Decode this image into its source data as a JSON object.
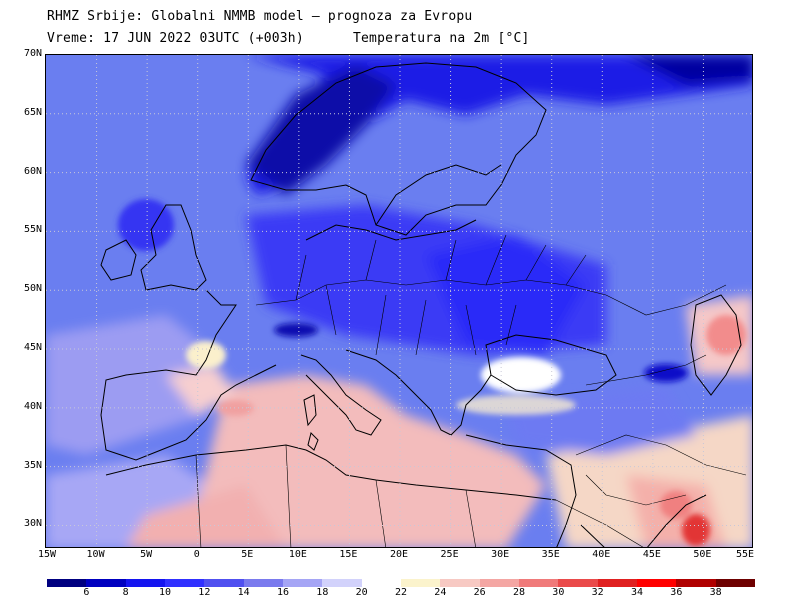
{
  "header": {
    "line1": "RHMZ Srbije: Globalni NMMB model — prognoza za Evropu",
    "line2_left": "Vreme: 17 JUN 2022 03UTC (+003h)",
    "line2_right": "Temperatura na 2m [°C]"
  },
  "map": {
    "lat_labels": [
      "70N",
      "65N",
      "60N",
      "55N",
      "50N",
      "45N",
      "40N",
      "35N",
      "30N"
    ],
    "lon_labels": [
      "15W",
      "10W",
      "5W",
      "0",
      "5E",
      "10E",
      "15E",
      "20E",
      "25E",
      "30E",
      "35E",
      "40E",
      "45E",
      "50E",
      "55E"
    ],
    "lon_range": [
      -15,
      55
    ],
    "lat_range": [
      28,
      70
    ],
    "background_color": "#6a7ef0",
    "grid": "dotted"
  },
  "legend": {
    "labels": [
      "6",
      "8",
      "10",
      "12",
      "14",
      "16",
      "18",
      "20",
      "22",
      "24",
      "26",
      "28",
      "30",
      "32",
      "34",
      "36",
      "38"
    ],
    "colors": [
      "#000080",
      "#0000c0",
      "#1414f0",
      "#3030ff",
      "#5050f0",
      "#7a7aee",
      "#a5a5f5",
      "#d2d2fb",
      "#ffffff",
      "#fbf3cc",
      "#f7c9c3",
      "#f4a6a3",
      "#f07a7a",
      "#ea4a4a",
      "#e02020",
      "#ff0000",
      "#b00000",
      "#6e0000"
    ]
  }
}
